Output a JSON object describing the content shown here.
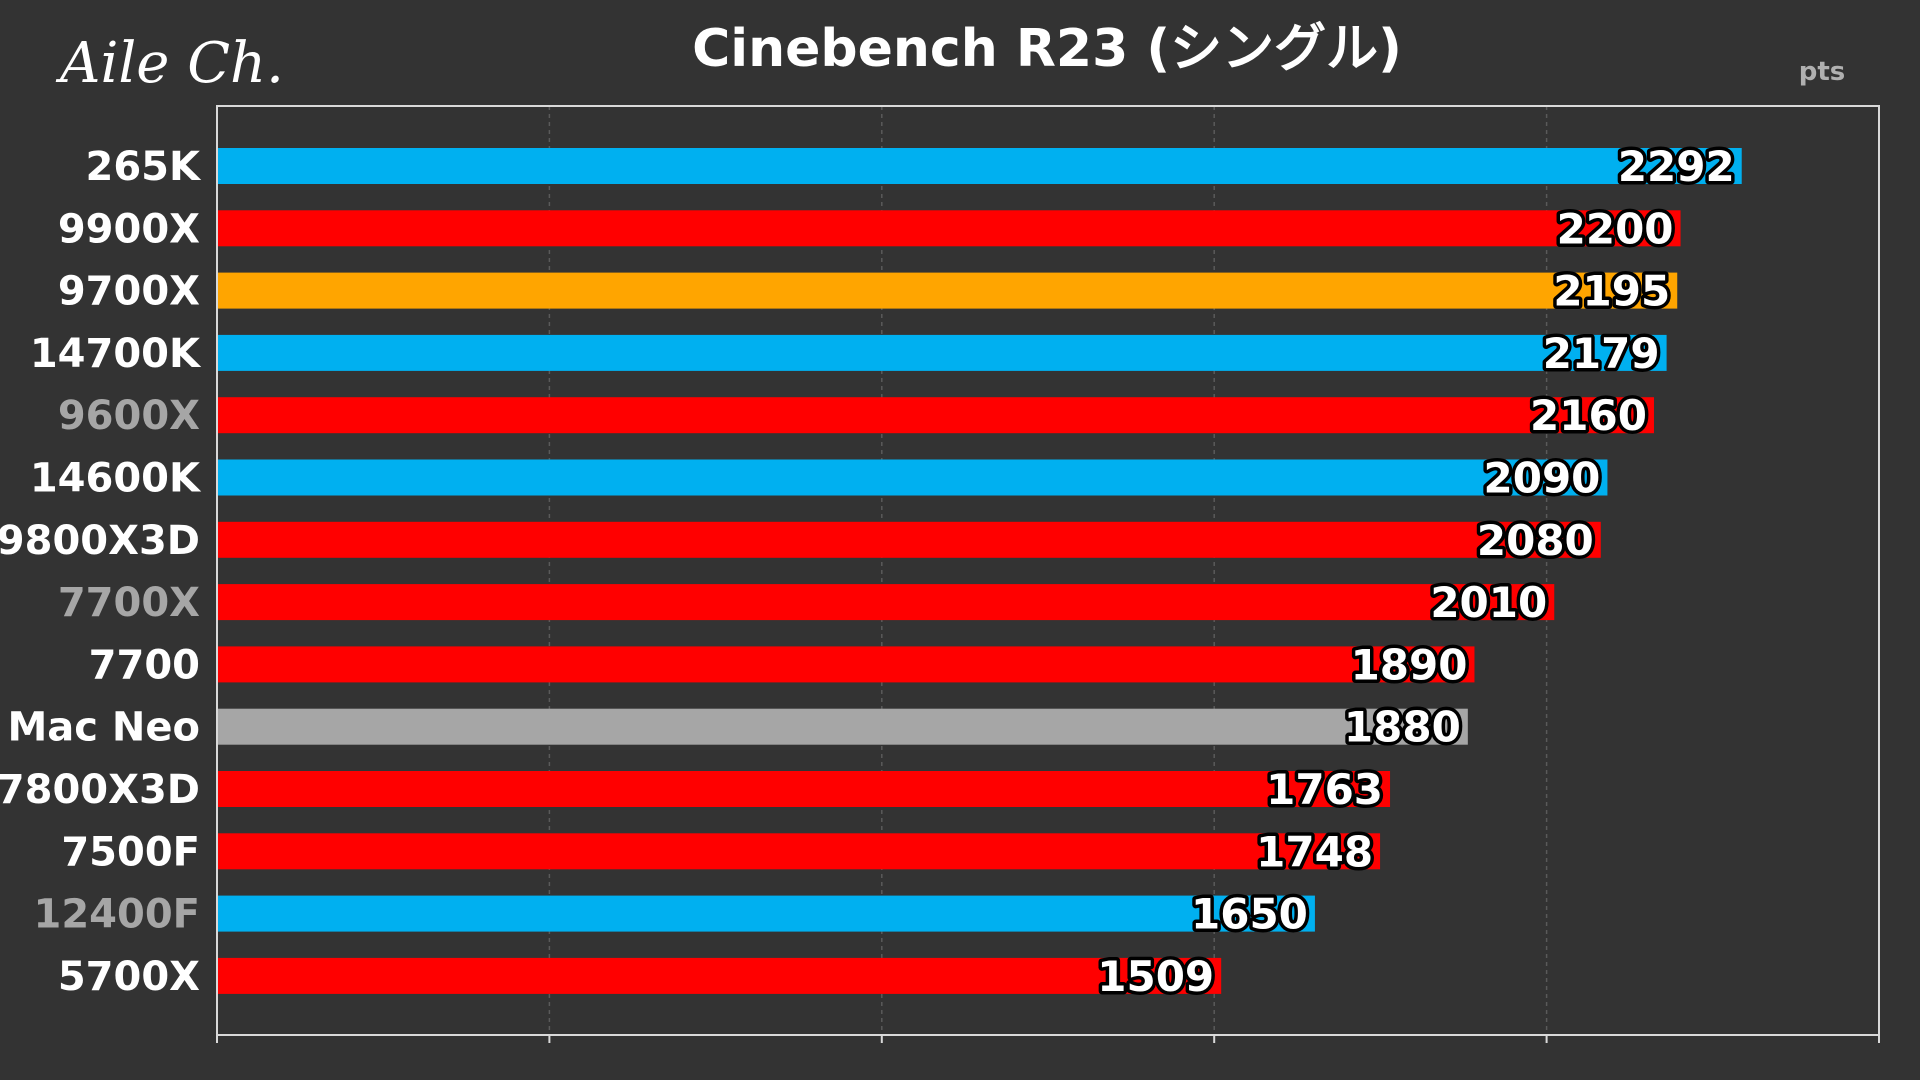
{
  "chart_data": {
    "type": "bar",
    "orientation": "horizontal",
    "title": "Cinebench R23 (シングル)",
    "unit": "pts",
    "logo": "Aile Ch.",
    "xlim": [
      0,
      2500
    ],
    "grid": true,
    "categories": [
      "265K",
      "9900X",
      "9700X",
      "14700K",
      "9600X",
      "14600K",
      "9800X3D",
      "7700X",
      "7700",
      "Mac Neo",
      "7800X3D",
      "7500F",
      "12400F",
      "5700X"
    ],
    "values": [
      2292,
      2200,
      2195,
      2179,
      2160,
      2090,
      2080,
      2010,
      1890,
      1880,
      1763,
      1748,
      1650,
      1509
    ],
    "bar_colors": [
      "#00b0f0",
      "#ff0000",
      "#ffa500",
      "#00b0f0",
      "#ff0000",
      "#00b0f0",
      "#ff0000",
      "#ff0000",
      "#ff0000",
      "#a6a6a6",
      "#ff0000",
      "#ff0000",
      "#00b0f0",
      "#ff0000"
    ],
    "label_colors": [
      "#ffffff",
      "#ffffff",
      "#ffffff",
      "#ffffff",
      "#a6a6a6",
      "#ffffff",
      "#ffffff",
      "#a6a6a6",
      "#ffffff",
      "#ffffff",
      "#ffffff",
      "#ffffff",
      "#a6a6a6",
      "#ffffff"
    ]
  }
}
